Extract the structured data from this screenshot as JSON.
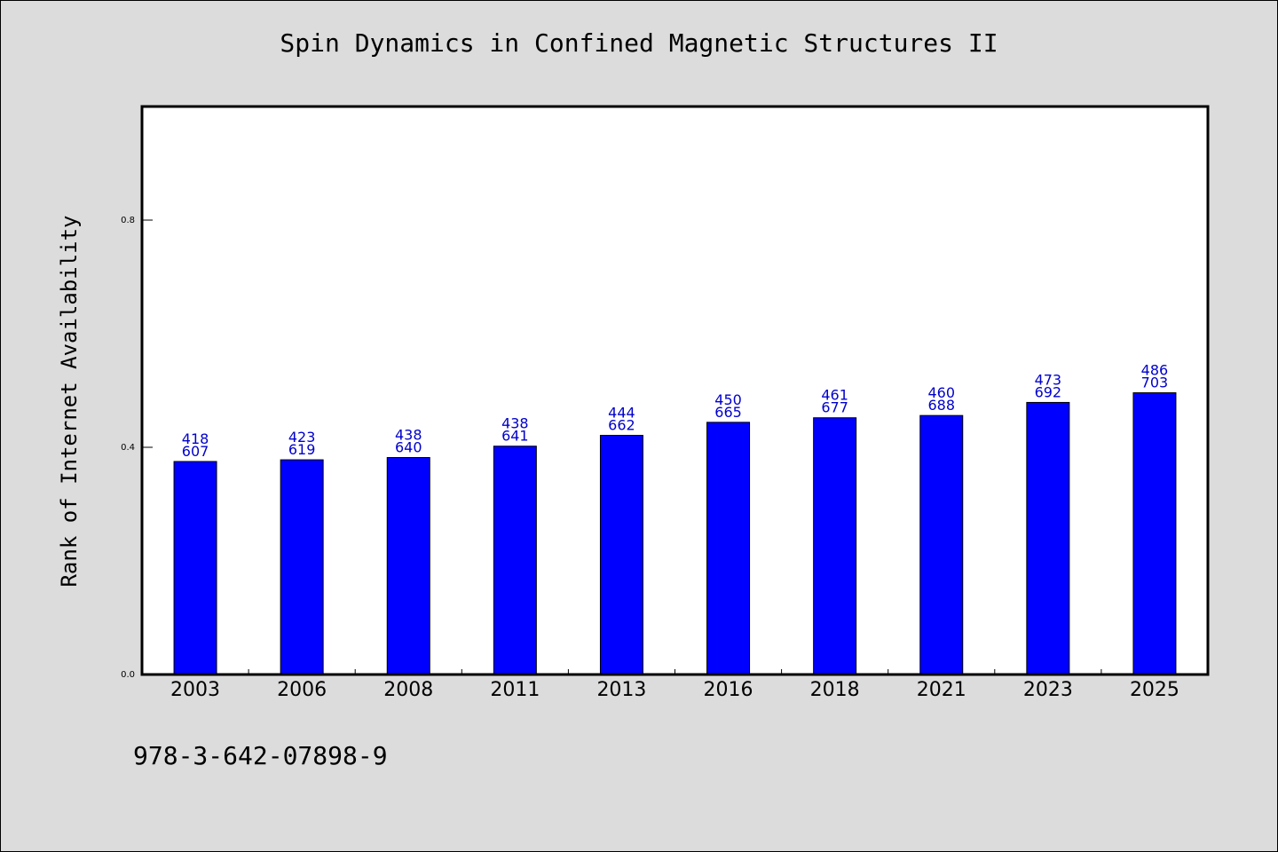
{
  "chart_data": {
    "type": "bar",
    "title": "Spin Dynamics in Confined Magnetic Structures II",
    "xlabel": "",
    "ylabel": "Rank of Internet Availability",
    "categories": [
      "2003",
      "2006",
      "2008",
      "2011",
      "2013",
      "2016",
      "2018",
      "2021",
      "2023",
      "2025"
    ],
    "values": [
      0.375,
      0.378,
      0.382,
      0.402,
      0.421,
      0.444,
      0.452,
      0.456,
      0.479,
      0.496
    ],
    "bar_labels_top": [
      "418",
      "423",
      "438",
      "438",
      "444",
      "450",
      "461",
      "460",
      "473",
      "486"
    ],
    "bar_labels_bottom": [
      "607",
      "619",
      "640",
      "641",
      "662",
      "665",
      "677",
      "688",
      "692",
      "703"
    ],
    "yticks": [
      0.0,
      0.4,
      0.8
    ],
    "ytick_labels": [
      "0.0",
      "0.4",
      "0.8"
    ],
    "ylim": [
      0,
      1.0
    ],
    "grid": false,
    "legend": "none",
    "colors": {
      "bar": "#0000ff",
      "bar_label": "#0000cc",
      "plot_bg": "#ffffff",
      "page_bg": "#dcdcdc"
    }
  },
  "footer": {
    "code": "978-3-642-07898-9"
  }
}
